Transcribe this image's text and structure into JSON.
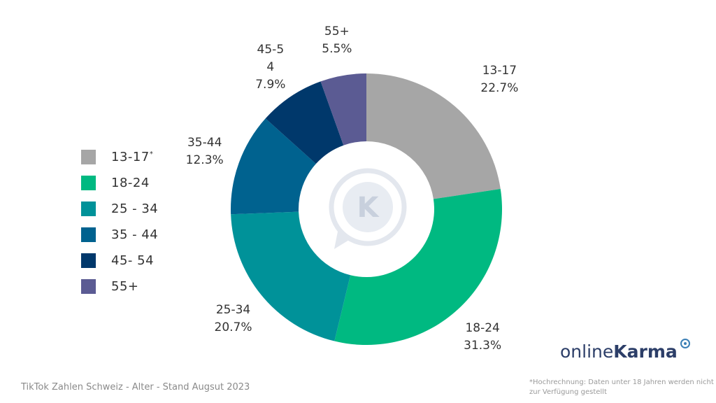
{
  "chart_data": {
    "type": "pie",
    "variant": "donut",
    "categories": [
      "13-17",
      "18-24",
      "25-34",
      "35-44",
      "45-54",
      "55+"
    ],
    "values": [
      22.7,
      31.3,
      20.7,
      12.3,
      7.9,
      5.5
    ],
    "value_labels": [
      "22.7%",
      "31.3%",
      "20.7%",
      "12.3%",
      "7.9%",
      "5.5%"
    ],
    "slice_labels": [
      "13-17",
      "18-24",
      "25-34",
      "35-44",
      "45-5\n4",
      "55+"
    ],
    "colors": [
      "#a6a6a6",
      "#00b981",
      "#009299",
      "#00628f",
      "#00386b",
      "#5b5b93"
    ],
    "legend": {
      "placement": "left",
      "items": [
        {
          "label": "13-17",
          "sup": "*"
        },
        {
          "label": "18-24",
          "sup": ""
        },
        {
          "label": "25 - 34",
          "sup": ""
        },
        {
          "label": "35 - 44",
          "sup": ""
        },
        {
          "label": "45- 54",
          "sup": ""
        },
        {
          "label": "55+",
          "sup": ""
        }
      ]
    }
  },
  "center_icon": "onlinekarma-k-logo-icon",
  "footer": {
    "caption": "TikTok Zahlen Schweiz - Alter - Stand Augsut 2023",
    "footnote": "*Hochrechnung: Daten unter 18 Jahren werden nicht zur Verfügung gestellt"
  },
  "brand": {
    "light": "online",
    "bold": "Karma",
    "color": "#2c3e68"
  }
}
